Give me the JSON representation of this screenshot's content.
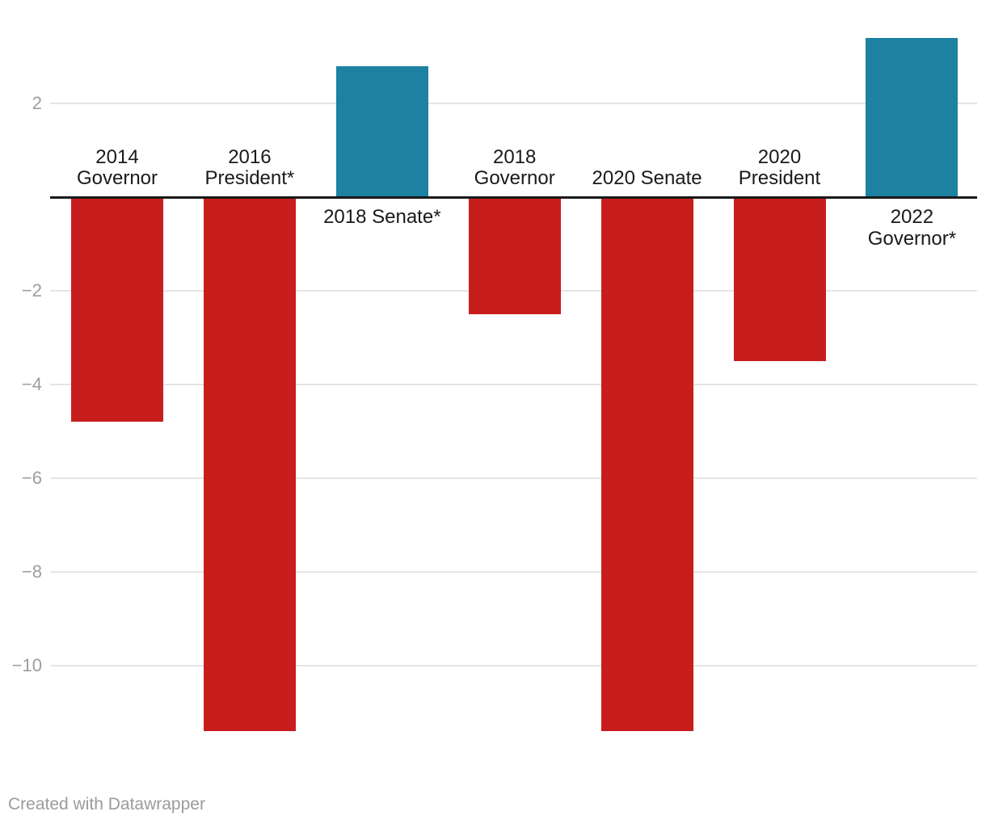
{
  "chart_data": {
    "type": "bar",
    "categories": [
      "2014 Governor",
      "2016 President*",
      "2018 Senate*",
      "2018 Governor",
      "2020 Senate",
      "2020 President",
      "2022 Governor*"
    ],
    "values": [
      -4.8,
      -11.4,
      2.8,
      -2.5,
      -11.4,
      -3.5,
      3.4
    ],
    "label_lines": [
      [
        "2014",
        "Governor"
      ],
      [
        "2016",
        "President*"
      ],
      [
        "2018 Senate*"
      ],
      [
        "2018",
        "Governor"
      ],
      [
        "2020 Senate"
      ],
      [
        "2020",
        "President"
      ],
      [
        "2022",
        "Governor*"
      ]
    ],
    "title": "",
    "xlabel": "",
    "ylabel": "",
    "ylim": [
      -11.6,
      3.6
    ],
    "grid": true,
    "legend": "none",
    "y_axis_ticks": [
      {
        "value": 2,
        "label": "2"
      },
      {
        "value": -2,
        "label": "−2"
      },
      {
        "value": -4,
        "label": "−4"
      },
      {
        "value": -6,
        "label": "−6"
      },
      {
        "value": -8,
        "label": "−8"
      },
      {
        "value": -10,
        "label": "−10"
      }
    ]
  },
  "colors": {
    "positive_bar": "#1d81a2",
    "negative_bar": "#c71e1d",
    "zero_line": "#191919",
    "gridline": "#e5e5e5",
    "tick_label": "#9d9d9d",
    "category_label": "#1a1a1a",
    "credit_text": "#9b9b9b"
  },
  "footer": {
    "credit": "Created with Datawrapper"
  }
}
